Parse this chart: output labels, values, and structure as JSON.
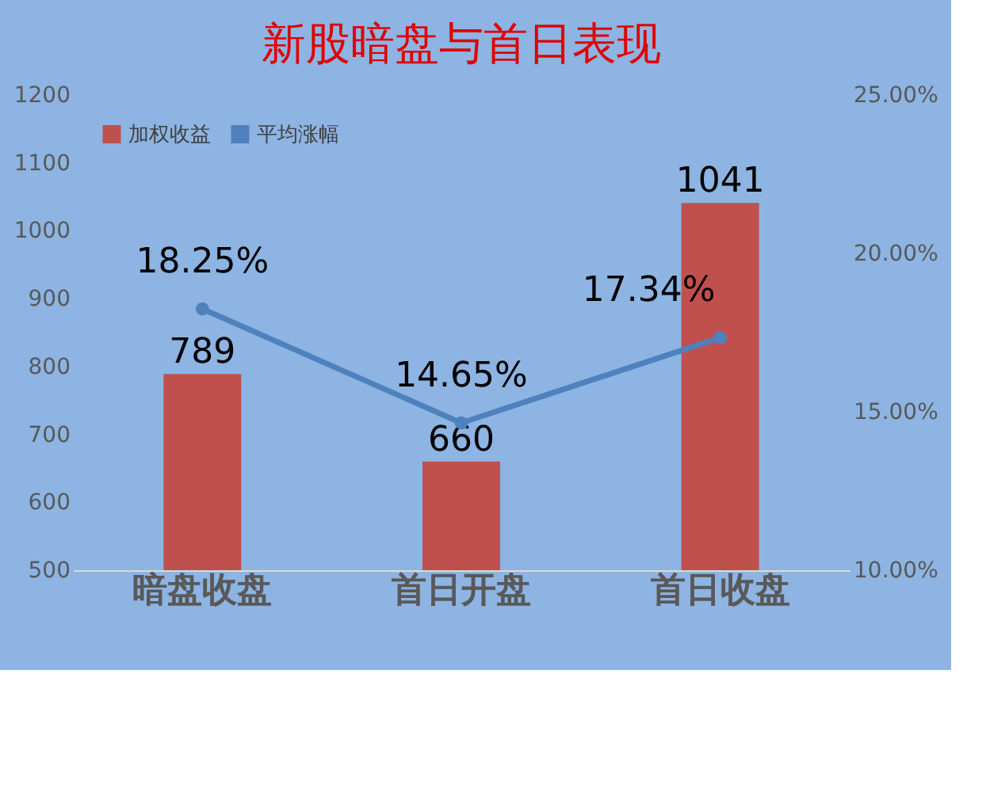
{
  "chart_data": {
    "type": "bar",
    "title": "新股暗盘与首日表现",
    "categories": [
      "暗盘收盘",
      "首日开盘",
      "首日收盘"
    ],
    "series": [
      {
        "name": "加权收益",
        "color": "#c0504d",
        "values": [
          789,
          660,
          1041
        ],
        "value_labels": [
          "789",
          "660",
          "1041"
        ]
      },
      {
        "name": "平均涨幅",
        "type": "line",
        "axis": "y2",
        "color": "#4f81bd",
        "values": [
          18.25,
          14.65,
          17.34
        ],
        "value_labels": [
          "18.25%",
          "14.65%",
          "17.34%"
        ],
        "marker": "circle"
      }
    ],
    "ylim": [
      500,
      1200
    ],
    "yticks": [
      500,
      600,
      700,
      800,
      900,
      1000,
      1100,
      1200
    ],
    "y2lim": [
      10,
      25
    ],
    "y2ticks": [
      {
        "value": 10,
        "label": "10.00%"
      },
      {
        "value": 15,
        "label": "15.00%"
      },
      {
        "value": 20,
        "label": "20.00%"
      },
      {
        "value": 25,
        "label": "25.00%"
      }
    ],
    "legend": "top left",
    "grid": false
  }
}
